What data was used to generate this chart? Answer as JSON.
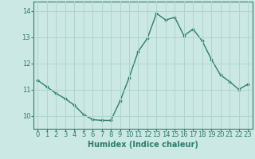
{
  "x": [
    0,
    1,
    2,
    3,
    4,
    5,
    6,
    7,
    8,
    9,
    10,
    11,
    12,
    13,
    14,
    15,
    16,
    17,
    18,
    19,
    20,
    21,
    22,
    23
  ],
  "y": [
    11.35,
    11.1,
    10.85,
    10.65,
    10.4,
    10.05,
    9.85,
    9.82,
    9.82,
    10.55,
    11.45,
    12.45,
    12.95,
    13.9,
    13.65,
    13.75,
    13.05,
    13.3,
    12.85,
    12.15,
    11.55,
    11.3,
    11.0,
    11.2
  ],
  "line_color": "#2d7d6e",
  "marker": "o",
  "marker_size": 2.2,
  "bg_color": "#cce8e4",
  "grid_color": "#afd4cf",
  "xlabel": "Humidex (Indice chaleur)",
  "xlabel_fontsize": 7,
  "tick_fontsize": 6,
  "ylim": [
    9.5,
    14.35
  ],
  "xlim": [
    -0.5,
    23.5
  ],
  "yticks": [
    10,
    11,
    12,
    13,
    14
  ],
  "xticks": [
    0,
    1,
    2,
    3,
    4,
    5,
    6,
    7,
    8,
    9,
    10,
    11,
    12,
    13,
    14,
    15,
    16,
    17,
    18,
    19,
    20,
    21,
    22,
    23
  ]
}
